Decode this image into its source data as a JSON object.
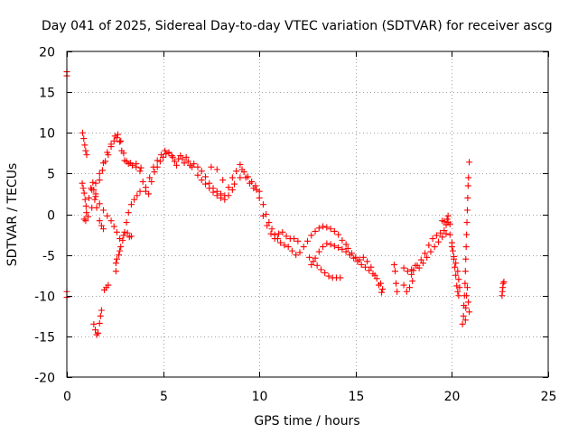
{
  "chart_data": {
    "type": "scatter",
    "title": "Day 041 of 2025, Sidereal Day-to-day VTEC variation (SDTVAR) for receiver ascg",
    "xlabel": "GPS time / hours",
    "ylabel": "SDTVAR / TECUs",
    "xlim": [
      0,
      25
    ],
    "ylim": [
      -20,
      20
    ],
    "xticks": [
      0,
      5,
      10,
      15,
      20,
      25
    ],
    "yticks": [
      -20,
      -15,
      -10,
      -5,
      0,
      5,
      10,
      15,
      20
    ],
    "xtick_labels": [
      "0",
      "5",
      "10",
      "15",
      "20",
      "25"
    ],
    "ytick_labels": [
      "-20",
      "-15",
      "-10",
      "-5",
      "0",
      "5",
      "10",
      "15",
      "20"
    ],
    "grid": true,
    "marker": "+",
    "marker_color": "#ff0000",
    "series": [
      {
        "name": "SDTVAR",
        "points": [
          [
            0.0,
            17.5
          ],
          [
            0.0,
            17.0
          ],
          [
            0.0,
            -9.5
          ],
          [
            0.0,
            -10.2
          ],
          [
            0.82,
            10.0
          ],
          [
            0.88,
            9.3
          ],
          [
            0.93,
            8.5
          ],
          [
            0.98,
            7.8
          ],
          [
            1.03,
            7.3
          ],
          [
            0.8,
            3.8
          ],
          [
            0.85,
            3.2
          ],
          [
            0.9,
            2.6
          ],
          [
            0.95,
            1.8
          ],
          [
            1.0,
            1.0
          ],
          [
            1.02,
            0.2
          ],
          [
            0.9,
            -0.6
          ],
          [
            0.98,
            -0.8
          ],
          [
            1.1,
            -0.3
          ],
          [
            1.15,
            2.0
          ],
          [
            1.25,
            3.2
          ],
          [
            1.35,
            3.9
          ],
          [
            1.4,
            3.0
          ],
          [
            1.45,
            1.8
          ],
          [
            1.55,
            0.8
          ],
          [
            1.7,
            -0.8
          ],
          [
            1.8,
            -1.4
          ],
          [
            1.9,
            -1.8
          ],
          [
            1.4,
            -13.5
          ],
          [
            1.48,
            -14.2
          ],
          [
            1.55,
            -14.8
          ],
          [
            1.62,
            -14.6
          ],
          [
            1.7,
            -13.4
          ],
          [
            1.75,
            -12.5
          ],
          [
            1.8,
            -11.8
          ],
          [
            1.95,
            -9.3
          ],
          [
            2.05,
            -9.0
          ],
          [
            2.15,
            -8.7
          ],
          [
            1.3,
            0.8
          ],
          [
            1.5,
            2.5
          ],
          [
            1.7,
            4.2
          ],
          [
            1.85,
            5.4
          ],
          [
            2.0,
            6.5
          ],
          [
            2.15,
            7.3
          ],
          [
            2.3,
            8.3
          ],
          [
            2.45,
            9.0
          ],
          [
            2.6,
            9.4
          ],
          [
            2.75,
            8.9
          ],
          [
            2.85,
            7.8
          ],
          [
            3.0,
            6.6
          ],
          [
            3.2,
            6.2
          ],
          [
            3.4,
            6.0
          ],
          [
            3.6,
            5.8
          ],
          [
            3.8,
            5.3
          ],
          [
            1.5,
            3.8
          ],
          [
            1.7,
            5.0
          ],
          [
            1.9,
            6.3
          ],
          [
            2.1,
            7.6
          ],
          [
            2.3,
            8.6
          ],
          [
            2.5,
            9.6
          ],
          [
            2.65,
            9.8
          ],
          [
            2.8,
            9.0
          ],
          [
            2.95,
            7.5
          ],
          [
            3.1,
            6.5
          ],
          [
            3.3,
            6.3
          ],
          [
            3.6,
            6.2
          ],
          [
            3.85,
            5.7
          ],
          [
            1.3,
            3.0
          ],
          [
            1.5,
            2.2
          ],
          [
            1.7,
            1.3
          ],
          [
            1.9,
            0.5
          ],
          [
            2.1,
            -0.2
          ],
          [
            2.3,
            -0.8
          ],
          [
            2.45,
            -1.5
          ],
          [
            2.6,
            -2.2
          ],
          [
            2.75,
            -3.0
          ],
          [
            2.55,
            -6.0
          ],
          [
            2.6,
            -5.5
          ],
          [
            2.7,
            -5.0
          ],
          [
            2.8,
            -4.0
          ],
          [
            2.9,
            -3.2
          ],
          [
            3.0,
            -2.2
          ],
          [
            3.1,
            -1.0
          ],
          [
            3.2,
            0.2
          ],
          [
            3.35,
            1.2
          ],
          [
            3.5,
            1.8
          ],
          [
            3.65,
            2.3
          ],
          [
            3.8,
            2.8
          ],
          [
            2.55,
            -7.0
          ],
          [
            2.75,
            -4.5
          ],
          [
            2.95,
            -2.6
          ],
          [
            3.15,
            -2.3
          ],
          [
            3.25,
            -2.8
          ],
          [
            3.35,
            -2.7
          ],
          [
            3.95,
            4.0
          ],
          [
            4.1,
            3.3
          ],
          [
            4.25,
            2.5
          ],
          [
            4.4,
            4.0
          ],
          [
            4.55,
            5.2
          ],
          [
            4.7,
            5.8
          ],
          [
            4.85,
            6.5
          ],
          [
            5.0,
            7.0
          ],
          [
            5.15,
            7.4
          ],
          [
            5.3,
            7.5
          ],
          [
            5.45,
            7.2
          ],
          [
            4.1,
            2.8
          ],
          [
            4.3,
            4.5
          ],
          [
            4.5,
            5.8
          ],
          [
            4.7,
            6.6
          ],
          [
            4.9,
            7.3
          ],
          [
            5.1,
            7.8
          ],
          [
            5.3,
            7.6
          ],
          [
            5.5,
            7.0
          ],
          [
            5.6,
            6.5
          ],
          [
            5.7,
            6.0
          ],
          [
            5.8,
            6.8
          ],
          [
            5.9,
            7.2
          ],
          [
            6.0,
            6.8
          ],
          [
            6.1,
            6.3
          ],
          [
            6.2,
            7.0
          ],
          [
            6.3,
            6.5
          ],
          [
            6.4,
            6.0
          ],
          [
            6.5,
            5.8
          ],
          [
            6.6,
            6.2
          ],
          [
            6.8,
            5.8
          ],
          [
            7.0,
            5.3
          ],
          [
            7.2,
            4.6
          ],
          [
            7.4,
            3.8
          ],
          [
            7.6,
            3.2
          ],
          [
            7.8,
            2.8
          ],
          [
            8.0,
            2.5
          ],
          [
            8.2,
            2.3
          ],
          [
            6.8,
            4.8
          ],
          [
            7.0,
            4.2
          ],
          [
            7.2,
            3.7
          ],
          [
            7.4,
            3.2
          ],
          [
            7.6,
            2.7
          ],
          [
            7.8,
            2.3
          ],
          [
            8.0,
            2.0
          ],
          [
            8.2,
            1.8
          ],
          [
            8.4,
            2.3
          ],
          [
            8.6,
            3.0
          ],
          [
            7.5,
            5.8
          ],
          [
            7.8,
            5.5
          ],
          [
            8.1,
            4.2
          ],
          [
            8.4,
            3.3
          ],
          [
            8.7,
            3.7
          ],
          [
            9.0,
            4.5
          ],
          [
            9.2,
            5.2
          ],
          [
            9.4,
            4.6
          ],
          [
            9.6,
            4.0
          ],
          [
            9.8,
            3.5
          ],
          [
            8.6,
            4.5
          ],
          [
            8.8,
            5.3
          ],
          [
            9.0,
            6.1
          ],
          [
            9.1,
            5.5
          ],
          [
            9.3,
            4.5
          ],
          [
            9.5,
            3.8
          ],
          [
            9.7,
            3.2
          ],
          [
            9.85,
            3.0
          ],
          [
            10.0,
            2.8
          ],
          [
            10.0,
            2.0
          ],
          [
            10.2,
            1.2
          ],
          [
            10.35,
            0.0
          ],
          [
            10.5,
            -1.0
          ],
          [
            10.65,
            -1.8
          ],
          [
            10.8,
            -2.5
          ],
          [
            10.95,
            -3.0
          ],
          [
            11.1,
            -3.5
          ],
          [
            11.3,
            -3.8
          ],
          [
            11.5,
            -4.0
          ],
          [
            10.2,
            -0.2
          ],
          [
            10.4,
            -1.4
          ],
          [
            10.6,
            -2.4
          ],
          [
            10.8,
            -3.0
          ],
          [
            11.0,
            -2.4
          ],
          [
            11.2,
            -2.2
          ],
          [
            11.4,
            -2.7
          ],
          [
            11.6,
            -3.0
          ],
          [
            11.8,
            -3.0
          ],
          [
            12.0,
            -3.3
          ],
          [
            11.7,
            -4.5
          ],
          [
            11.9,
            -5.0
          ],
          [
            12.1,
            -4.7
          ],
          [
            12.3,
            -4.0
          ],
          [
            12.5,
            -3.3
          ],
          [
            12.7,
            -2.6
          ],
          [
            12.9,
            -2.1
          ],
          [
            13.1,
            -1.7
          ],
          [
            13.3,
            -1.5
          ],
          [
            13.5,
            -1.6
          ],
          [
            13.7,
            -1.8
          ],
          [
            13.9,
            -2.1
          ],
          [
            14.1,
            -2.5
          ],
          [
            14.3,
            -3.2
          ],
          [
            14.5,
            -3.7
          ],
          [
            12.6,
            -5.3
          ],
          [
            12.8,
            -5.8
          ],
          [
            13.0,
            -6.3
          ],
          [
            13.2,
            -6.8
          ],
          [
            13.4,
            -7.2
          ],
          [
            13.6,
            -7.6
          ],
          [
            13.8,
            -7.8
          ],
          [
            14.0,
            -7.8
          ],
          [
            14.2,
            -7.8
          ],
          [
            12.7,
            -6.2
          ],
          [
            12.9,
            -5.4
          ],
          [
            13.1,
            -4.6
          ],
          [
            13.3,
            -4.0
          ],
          [
            13.5,
            -3.6
          ],
          [
            13.7,
            -3.7
          ],
          [
            13.9,
            -3.9
          ],
          [
            14.1,
            -4.1
          ],
          [
            14.3,
            -4.3
          ],
          [
            14.5,
            -4.6
          ],
          [
            14.7,
            -5.0
          ],
          [
            14.9,
            -5.4
          ],
          [
            15.1,
            -5.8
          ],
          [
            15.3,
            -6.2
          ],
          [
            15.5,
            -6.5
          ],
          [
            15.7,
            -6.9
          ],
          [
            15.9,
            -7.3
          ],
          [
            16.1,
            -7.9
          ],
          [
            16.3,
            -8.5
          ],
          [
            16.4,
            -9.2
          ],
          [
            14.6,
            -4.2
          ],
          [
            14.8,
            -4.8
          ],
          [
            15.0,
            -5.3
          ],
          [
            15.2,
            -5.6
          ],
          [
            15.4,
            -5.3
          ],
          [
            15.6,
            -5.8
          ],
          [
            15.8,
            -6.5
          ],
          [
            16.0,
            -7.5
          ],
          [
            16.2,
            -8.7
          ],
          [
            16.35,
            -9.6
          ],
          [
            17.0,
            -6.2
          ],
          [
            17.05,
            -7.0
          ],
          [
            17.1,
            -8.5
          ],
          [
            17.15,
            -9.5
          ],
          [
            17.5,
            -6.6
          ],
          [
            17.7,
            -7.0
          ],
          [
            17.9,
            -7.4
          ],
          [
            17.5,
            -8.7
          ],
          [
            17.65,
            -9.5
          ],
          [
            17.8,
            -9.0
          ],
          [
            17.95,
            -8.2
          ],
          [
            17.9,
            -6.8
          ],
          [
            18.1,
            -6.3
          ],
          [
            18.3,
            -6.6
          ],
          [
            18.5,
            -6.0
          ],
          [
            18.7,
            -5.3
          ],
          [
            18.9,
            -4.6
          ],
          [
            19.1,
            -4.0
          ],
          [
            19.3,
            -3.4
          ],
          [
            19.5,
            -2.8
          ],
          [
            19.7,
            -2.4
          ],
          [
            18.0,
            -6.9
          ],
          [
            18.2,
            -6.3
          ],
          [
            18.4,
            -5.6
          ],
          [
            18.6,
            -4.8
          ],
          [
            18.8,
            -3.8
          ],
          [
            19.0,
            -3.0
          ],
          [
            19.2,
            -2.6
          ],
          [
            19.4,
            -2.3
          ],
          [
            19.6,
            -2.0
          ],
          [
            19.7,
            -1.3
          ],
          [
            19.75,
            -0.6
          ],
          [
            19.8,
            -0.2
          ],
          [
            19.5,
            -0.8
          ],
          [
            19.6,
            -0.9
          ],
          [
            19.8,
            -1.0
          ],
          [
            19.9,
            -1.2
          ],
          [
            19.9,
            -2.5
          ],
          [
            20.0,
            -3.5
          ],
          [
            20.05,
            -4.5
          ],
          [
            20.1,
            -5.5
          ],
          [
            20.15,
            -6.5
          ],
          [
            20.2,
            -7.5
          ],
          [
            20.25,
            -8.8
          ],
          [
            20.3,
            -9.5
          ],
          [
            20.35,
            -10.0
          ],
          [
            20.0,
            -4.0
          ],
          [
            20.1,
            -5.2
          ],
          [
            20.2,
            -6.0
          ],
          [
            20.3,
            -7.0
          ],
          [
            20.35,
            -8.0
          ],
          [
            20.4,
            -9.0
          ],
          [
            20.55,
            -13.5
          ],
          [
            20.6,
            -12.5
          ],
          [
            20.62,
            -11.2
          ],
          [
            20.65,
            -10.0
          ],
          [
            20.68,
            -8.5
          ],
          [
            20.7,
            -7.0
          ],
          [
            20.72,
            -5.5
          ],
          [
            20.74,
            -4.0
          ],
          [
            20.76,
            -2.5
          ],
          [
            20.78,
            -1.0
          ],
          [
            20.8,
            0.5
          ],
          [
            20.82,
            2.0
          ],
          [
            20.84,
            3.5
          ],
          [
            20.86,
            4.5
          ],
          [
            20.9,
            6.4
          ],
          [
            20.7,
            -13.0
          ],
          [
            20.72,
            -11.5
          ],
          [
            20.76,
            -10.0
          ],
          [
            20.8,
            -9.0
          ],
          [
            20.85,
            -10.8
          ],
          [
            20.9,
            -12.0
          ],
          [
            22.6,
            -10.0
          ],
          [
            22.62,
            -9.5
          ],
          [
            22.64,
            -9.0
          ],
          [
            22.66,
            -8.5
          ],
          [
            22.7,
            -8.3
          ]
        ]
      }
    ]
  }
}
